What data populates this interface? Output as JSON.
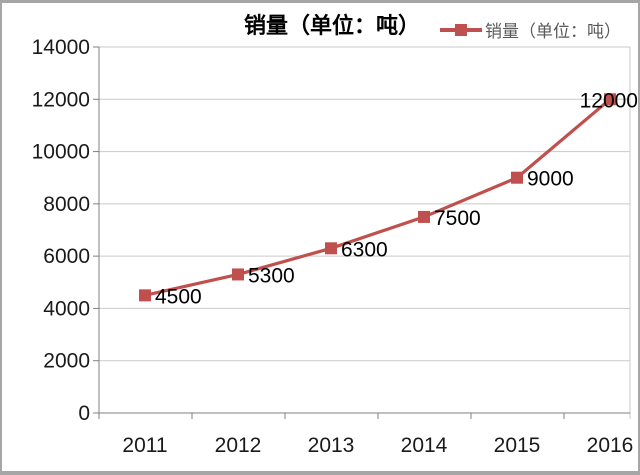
{
  "frame": {
    "background": "#ffffff",
    "border_color": "#a6a6a6"
  },
  "chart_data": {
    "type": "line",
    "title": "销量（单位：吨）",
    "legend": {
      "position": "top-right",
      "entries": [
        {
          "label": "销量（单位：吨）",
          "marker": "square-on-line",
          "color": "#c0504d"
        }
      ]
    },
    "categories": [
      "2011",
      "2012",
      "2013",
      "2014",
      "2015",
      "2016"
    ],
    "series": [
      {
        "name": "销量（单位：吨）",
        "color": "#c0504d",
        "values": [
          4500,
          5300,
          6300,
          7500,
          9000,
          12000
        ],
        "data_labels": [
          "4500",
          "5300",
          "6300",
          "7500",
          "9000",
          "12000"
        ]
      }
    ],
    "xlabel": "",
    "ylabel": "",
    "ylim": [
      0,
      14000
    ],
    "ytick_step": 2000,
    "yticks": [
      0,
      2000,
      4000,
      6000,
      8000,
      10000,
      12000,
      14000
    ],
    "grid": true,
    "colors": {
      "grid": "#c9c9c9",
      "plot_right_border": "#c9c9c9",
      "axis": "#808080",
      "tick_label": "#1a1a1a",
      "data_label": "#000000",
      "title": "#000000",
      "legend_text": "#595959"
    }
  }
}
